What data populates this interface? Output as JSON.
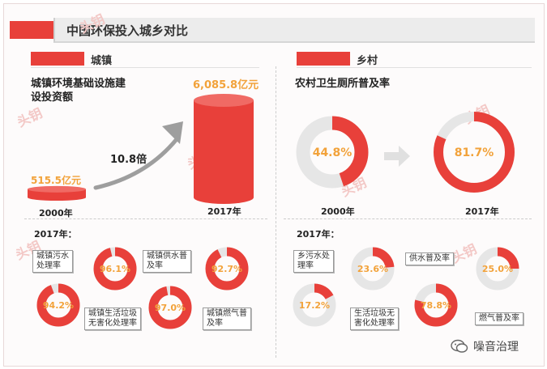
{
  "header": {
    "title": "中国环保投入城乡对比"
  },
  "sections": {
    "urban": {
      "label": "城镇"
    },
    "rural": {
      "label": "乡村"
    }
  },
  "urban_invest": {
    "heading_line1": "城镇环境基础设施建",
    "heading_line2": "设投资额",
    "v2000_label": "515.5亿元",
    "v2017_label": "6,085.8亿元",
    "year_a": "2000年",
    "year_b": "2017年",
    "multiplier": "10.8倍"
  },
  "rural_toilet": {
    "heading": "农村卫生厕所普及率",
    "year_a": "2000年",
    "year_b": "2017年"
  },
  "year2017_label_left": "2017年：",
  "year2017_label_right": "2017年：",
  "urban_2017": [
    {
      "label_line1": "城镇污水",
      "label_line2": "处理率"
    },
    {
      "label_line1": "城镇生活垃圾",
      "label_line2": "无害化处理率"
    },
    {
      "label_line1": "城镇供水普",
      "label_line2": "及率"
    },
    {
      "label_line1": "城镇燃气普",
      "label_line2": "及率"
    }
  ],
  "rural_2017": [
    {
      "label_line1": "乡污水处",
      "label_line2": "理率"
    },
    {
      "label_line1": "生活垃圾无",
      "label_line2": "害化处理率"
    },
    {
      "label_line1": "供水普及率",
      "label_line2": ""
    },
    {
      "label_line1": "燃气普及率",
      "label_line2": ""
    }
  ],
  "watermark": "头钥",
  "footer": {
    "account_name": "噪音治理"
  },
  "colors": {
    "accent": "#e8403a",
    "track": "#e6e6e6",
    "value_text": "#f2a23a"
  },
  "chart_data": [
    {
      "type": "bar",
      "title": "城镇环境基础设施建设投资额",
      "categories": [
        "2000年",
        "2017年"
      ],
      "values": [
        515.5,
        6085.8
      ],
      "unit": "亿元",
      "annotation": "10.8倍"
    },
    {
      "type": "pie",
      "title": "农村卫生厕所普及率",
      "categories": [
        "2000年",
        "2017年"
      ],
      "values": [
        44.8,
        81.7
      ],
      "value_labels": [
        "44.8%",
        "81.7%"
      ]
    },
    {
      "type": "pie",
      "title": "2017年：",
      "categories": [
        "城镇污水处理率",
        "城镇生活垃圾无害化处理率",
        "城镇供水普及率",
        "城镇燃气普及率"
      ],
      "values": [
        94.2,
        96.1,
        97.0,
        92.7
      ],
      "value_labels": [
        "94.2%",
        "96.1%",
        "97.0%",
        "92.7%"
      ]
    },
    {
      "type": "pie",
      "title": "2017年：",
      "categories": [
        "乡污水处理率",
        "生活垃圾无害化处理率",
        "供水普及率",
        "燃气普及率"
      ],
      "values": [
        17.2,
        23.6,
        78.8,
        25.0
      ],
      "value_labels": [
        "17.2%",
        "23.6%",
        "78.8%",
        "25.0%"
      ]
    }
  ]
}
